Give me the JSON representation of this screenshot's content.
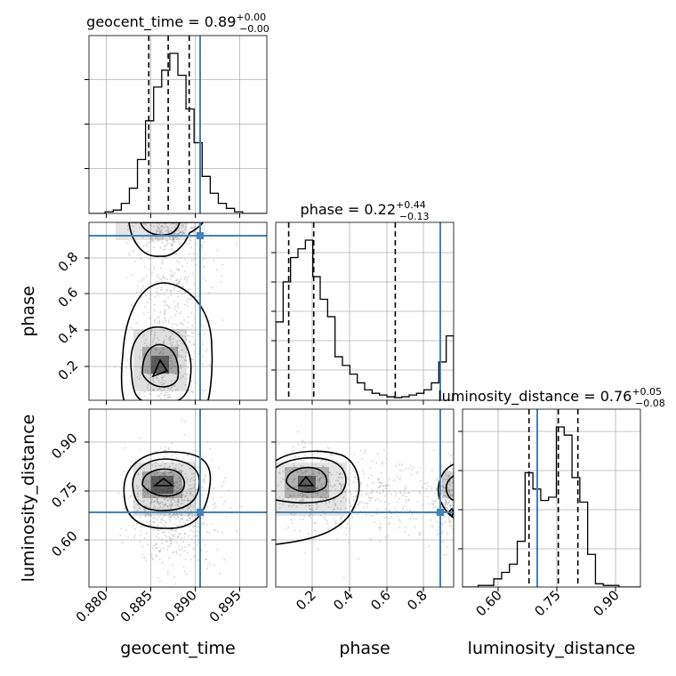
{
  "chart_data": {
    "type": "corner",
    "parameters": [
      "geocent_time",
      "phase",
      "luminosity_distance"
    ],
    "titles": [
      {
        "param": "geocent_time",
        "median": "0.89",
        "plus": "+0.00",
        "minus": "−0.00"
      },
      {
        "param": "phase",
        "median": "0.22",
        "plus": "+0.44",
        "minus": "−0.13"
      },
      {
        "param": "luminosity_distance",
        "median": "0.76",
        "plus": "+0.05",
        "minus": "−0.08"
      }
    ],
    "axis_labels": {
      "x": [
        "geocent_time",
        "phase",
        "luminosity_distance"
      ],
      "y": [
        "phase",
        "luminosity_distance"
      ]
    },
    "ranges": {
      "geocent_time": [
        0.8775,
        0.8995
      ],
      "phase": [
        0.01,
        0.97
      ],
      "luminosity_distance": [
        0.515,
        0.97
      ]
    },
    "tick_labels": {
      "geocent_time": [
        "0.880",
        "0.885",
        "0.890",
        "0.895"
      ],
      "phase": [
        "0.2",
        "0.4",
        "0.6",
        "0.8"
      ],
      "luminosity_distance": [
        "0.60",
        "0.75",
        "0.90"
      ]
    },
    "truths": {
      "geocent_time": 0.8916,
      "phase": 0.93,
      "luminosity_distance": 0.685
    },
    "quantiles": {
      "geocent_time": [
        0.8849,
        0.8873,
        0.8899
      ],
      "phase": [
        0.08,
        0.215,
        0.655
      ],
      "luminosity_distance": [
        0.685,
        0.76,
        0.81
      ]
    },
    "histograms": {
      "geocent_time": {
        "edges": [
          0.8775,
          0.8785,
          0.8795,
          0.8805,
          0.8815,
          0.8825,
          0.8835,
          0.8845,
          0.8855,
          0.8865,
          0.8875,
          0.8885,
          0.8895,
          0.8905,
          0.8915,
          0.8925,
          0.8935,
          0.8945,
          0.8955,
          0.8965,
          0.8975,
          0.8985,
          0.8995
        ],
        "counts": [
          0,
          0,
          1,
          2,
          6,
          15,
          32,
          55,
          75,
          85,
          95,
          82,
          62,
          42,
          22,
          12,
          6,
          3,
          1,
          0,
          0,
          0
        ]
      },
      "phase": {
        "edges": [
          0.01,
          0.05,
          0.09,
          0.13,
          0.17,
          0.21,
          0.25,
          0.29,
          0.33,
          0.37,
          0.41,
          0.45,
          0.49,
          0.53,
          0.57,
          0.61,
          0.65,
          0.69,
          0.73,
          0.77,
          0.81,
          0.85,
          0.89,
          0.93,
          0.97
        ],
        "counts": [
          45,
          68,
          82,
          87,
          92,
          71,
          58,
          48,
          25,
          20,
          15,
          10,
          6,
          4,
          3,
          2,
          1.5,
          2,
          3,
          4,
          6,
          10,
          22,
          37
        ]
      },
      "luminosity_distance": {
        "edges": [
          0.515,
          0.535,
          0.555,
          0.575,
          0.595,
          0.615,
          0.635,
          0.655,
          0.675,
          0.695,
          0.715,
          0.735,
          0.755,
          0.775,
          0.795,
          0.815,
          0.835,
          0.855,
          0.875,
          0.895,
          0.915,
          0.935,
          0.955,
          0.97
        ],
        "counts": [
          0,
          0,
          1,
          1,
          5,
          9,
          14,
          28,
          70,
          60,
          53,
          55,
          98,
          93,
          67,
          52,
          20,
          2,
          1,
          1,
          0,
          0,
          0
        ]
      }
    },
    "joint_2d": [
      {
        "x": "geocent_time",
        "y": "phase",
        "modes": [
          {
            "x": 0.8875,
            "y": 0.17
          },
          {
            "x": 0.887,
            "y": 0.95
          }
        ]
      },
      {
        "x": "geocent_time",
        "y": "luminosity_distance",
        "modes": [
          {
            "x": 0.8875,
            "y": 0.77
          }
        ]
      },
      {
        "x": "phase",
        "y": "luminosity_distance",
        "modes": [
          {
            "x": 0.17,
            "y": 0.775
          },
          {
            "x": 0.96,
            "y": 0.74
          }
        ]
      }
    ],
    "grid": true,
    "colors": {
      "truth": "#4682b4",
      "hist": "#000000",
      "scatter": "#9e9e9e"
    }
  }
}
